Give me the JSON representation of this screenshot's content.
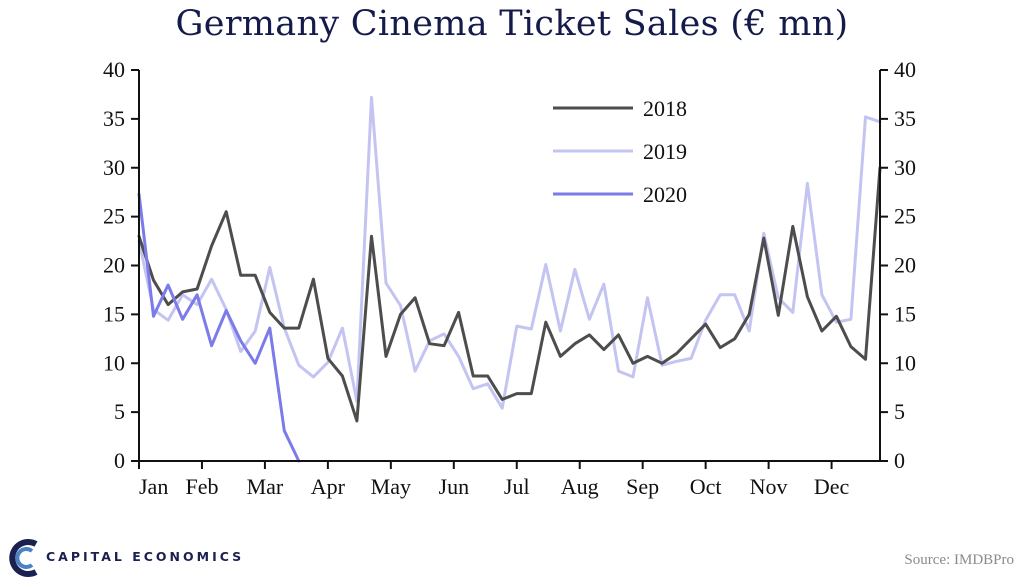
{
  "chart_data": {
    "type": "line",
    "title": "Germany Cinema Ticket Sales (€ mn)",
    "xlabel": "",
    "ylabel": "",
    "ylim": [
      0,
      40
    ],
    "yticks": [
      0,
      5,
      10,
      15,
      20,
      25,
      30,
      35,
      40
    ],
    "dual_axis": true,
    "grid": false,
    "legend_position": "top-center",
    "month_labels": [
      "Jan",
      "Feb",
      "Mar",
      "Apr",
      "May",
      "Jun",
      "Jul",
      "Aug",
      "Sep",
      "Oct",
      "Nov",
      "Dec"
    ],
    "x_unit": "week",
    "series": [
      {
        "name": "2018",
        "color": "#4d4d4d",
        "x": [
          1,
          2,
          3,
          4,
          5,
          6,
          7,
          8,
          9,
          10,
          11,
          12,
          13,
          14,
          15,
          16,
          17,
          18,
          19,
          20,
          21,
          22,
          23,
          24,
          25,
          26,
          27,
          28,
          29,
          30,
          31,
          32,
          33,
          34,
          35,
          36,
          37,
          38,
          39,
          40,
          41,
          42,
          43,
          44,
          45,
          46,
          47,
          48,
          49,
          50,
          51,
          52
        ],
        "values": [
          23,
          18.5,
          16,
          17.3,
          17.6,
          22,
          25.5,
          19,
          19,
          15.2,
          13.6,
          13.6,
          18.6,
          10.5,
          8.7,
          4.1,
          23,
          10.7,
          15,
          16.7,
          12,
          11.8,
          15.2,
          8.7,
          8.7,
          6.3,
          6.9,
          6.9,
          14.2,
          10.7,
          12,
          12.9,
          11.4,
          12.9,
          10,
          10.7,
          10,
          11,
          12.5,
          14,
          11.6,
          12.5,
          15,
          22.8,
          14.9,
          24,
          16.8,
          13.3,
          14.8,
          11.7,
          10.4,
          30
        ]
      },
      {
        "name": "2019",
        "color": "#c4c4f2",
        "x": [
          1,
          2,
          3,
          4,
          5,
          6,
          7,
          8,
          9,
          10,
          11,
          12,
          13,
          14,
          15,
          16,
          17,
          18,
          19,
          20,
          21,
          22,
          23,
          24,
          25,
          26,
          27,
          28,
          29,
          30,
          31,
          32,
          33,
          34,
          35,
          36,
          37,
          38,
          39,
          40,
          41,
          42,
          43,
          44,
          45,
          46,
          47,
          48,
          49,
          50,
          51,
          52
        ],
        "values": [
          22.5,
          15.5,
          14.4,
          17,
          16,
          18.6,
          15.5,
          11.2,
          13.3,
          19.8,
          13.6,
          9.8,
          8.6,
          10.1,
          13.6,
          6.1,
          37.2,
          18.2,
          15.9,
          9.2,
          12.3,
          13,
          10.7,
          7.4,
          7.9,
          5.4,
          13.8,
          13.5,
          20.1,
          13.3,
          19.6,
          14.5,
          18.1,
          9.2,
          8.6,
          16.7,
          9.8,
          10.2,
          10.5,
          14.4,
          17,
          17,
          13.3,
          23.3,
          16.7,
          15.2,
          28.4,
          17,
          14.2,
          14.5,
          35.2,
          34.7
        ]
      },
      {
        "name": "2020",
        "color": "#7b7bea",
        "x": [
          1,
          2,
          3,
          4,
          5,
          6,
          7,
          8,
          9,
          10,
          11,
          12
        ],
        "values": [
          27.3,
          14.8,
          18,
          14.5,
          17,
          11.8,
          15.4,
          12.3,
          10,
          13.6,
          3.1,
          0
        ]
      }
    ]
  },
  "source": "Source: IMDBPro",
  "logo_text": "CAPITAL ECONOMICS",
  "colors": {
    "title": "#141a4a",
    "axis": "#111111",
    "logo": "#1a2050"
  }
}
